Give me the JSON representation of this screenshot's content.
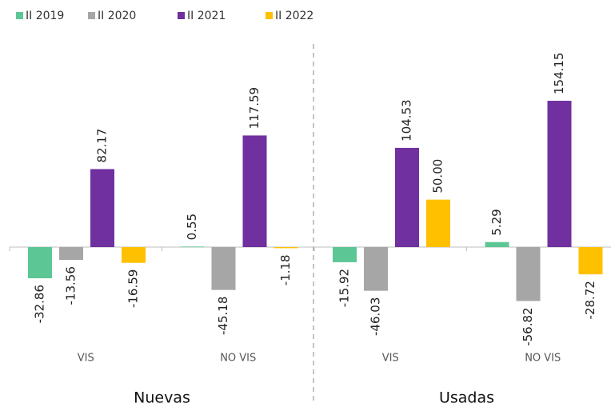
{
  "chart_data": {
    "type": "bar",
    "categories": [
      "VIS",
      "NO VIS",
      "VIS",
      "NO VIS"
    ],
    "groups": [
      "Nuevas",
      "Usadas"
    ],
    "series": [
      {
        "name": "II 2019",
        "color": "#5cc794",
        "values": [
          -32.86,
          0.55,
          -15.92,
          5.29
        ],
        "value_labels": [
          "-32.86",
          "0.55",
          "-15.92",
          "5.29"
        ]
      },
      {
        "name": "II 2020",
        "color": "#a6a6a6",
        "values": [
          -13.56,
          -45.18,
          -46.03,
          -56.82
        ],
        "value_labels": [
          "-13.56",
          "-45.18",
          "-46.03",
          "-56.82"
        ]
      },
      {
        "name": "II 2021",
        "color": "#7030a0",
        "values": [
          82.17,
          117.59,
          104.53,
          154.15
        ],
        "value_labels": [
          "82.17",
          "117.59",
          "104.53",
          "154.15"
        ]
      },
      {
        "name": "II 2022",
        "color": "#ffc000",
        "values": [
          -16.59,
          -1.18,
          50.0,
          -28.72
        ],
        "value_labels": [
          "-16.59",
          "-1.18",
          "50.00",
          "-28.72"
        ]
      }
    ]
  }
}
